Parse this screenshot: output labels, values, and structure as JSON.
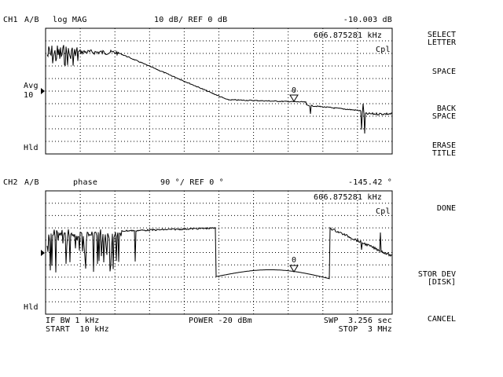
{
  "ch1": {
    "label": "CH1",
    "input": "A/B",
    "format": "log MAG",
    "scale": "10 dB/ REF 0 dB",
    "marker_value": "-10.003 dB",
    "marker_freq": "606.875281 kHz",
    "cpl": "Cpl",
    "avg_label": "Avg",
    "avg_value": "10",
    "hld": "Hld",
    "marker_num": "0"
  },
  "ch2": {
    "label": "CH2",
    "input": "A/B",
    "format": "phase",
    "scale": "90 °/ REF 0 °",
    "marker_value": "-145.42 °",
    "marker_freq": "606.875281 kHz",
    "cpl": "Cpl",
    "hld": "Hld",
    "marker_num": "0"
  },
  "footer": {
    "if_bw": "IF BW 1 kHz",
    "power": "POWER -20 dBm",
    "swp": "SWP  3.256 sec",
    "start": "START  10 kHz",
    "stop": "STOP  3 MHz"
  },
  "softkeys": [
    "SELECT\nLETTER",
    "SPACE",
    "BACK\nSPACE",
    "ERASE\nTITLE",
    "DONE",
    "STOR DEV\n[DISK]",
    "CANCEL"
  ]
}
